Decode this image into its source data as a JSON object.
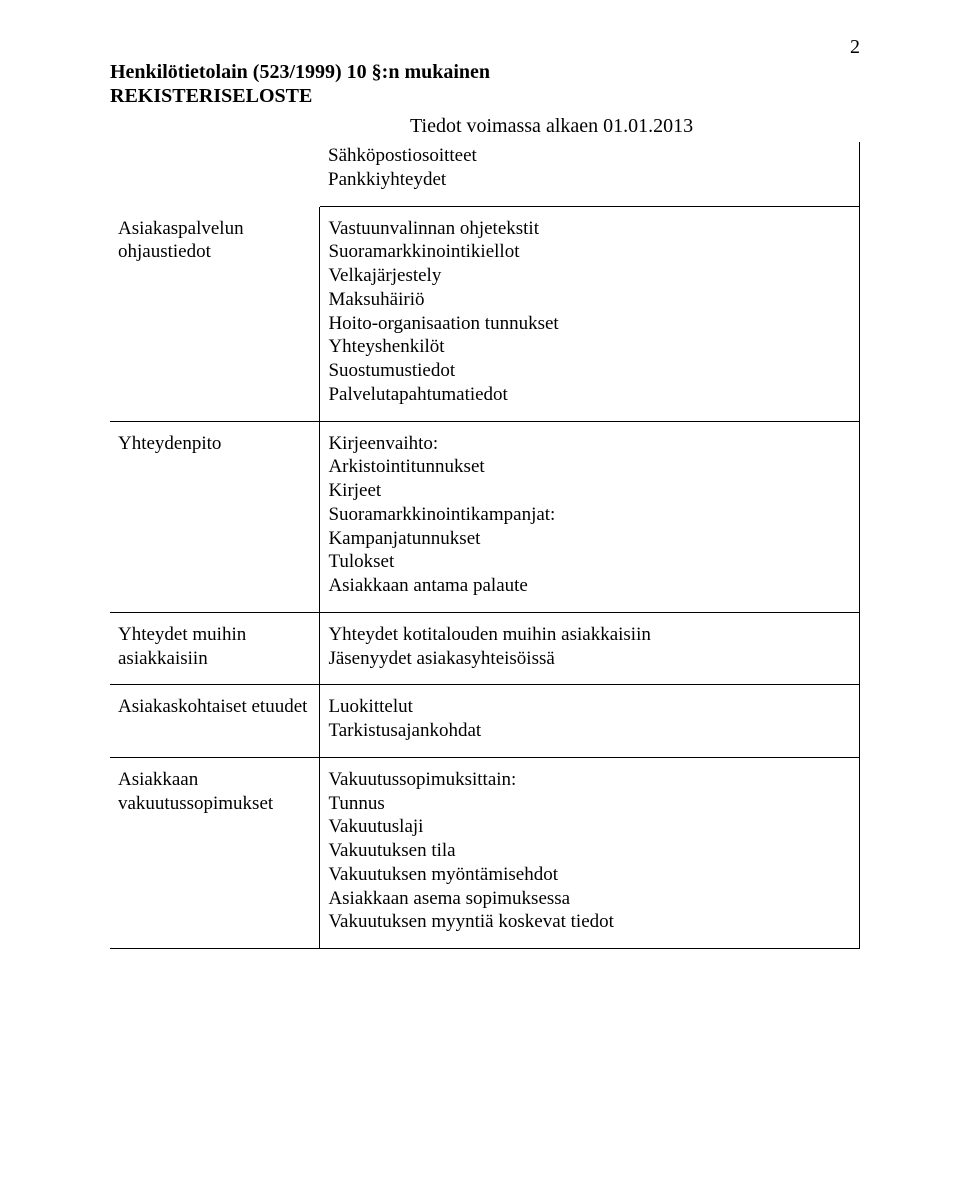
{
  "page_number": "2",
  "header": {
    "title": "Henkilötietolain (523/1999) 10 §:n mukainen\nREKISTERISELOSTE",
    "subtitle": "Tiedot voimassa alkaen 01.01.2013"
  },
  "intro_items": [
    "Sähköpostiosoitteet",
    "Pankkiyhteydet"
  ],
  "rows": [
    {
      "label": "Asiakaspalvelun ohjaustiedot",
      "items": [
        "Vastuunvalinnan ohjetekstit",
        "Suoramarkkinointikiellot",
        "Velkajärjestely",
        "Maksuhäiriö",
        "Hoito-organisaation tunnukset",
        "Yhteyshenkilöt",
        "Suostumustiedot",
        "Palvelutapahtumatiedot"
      ]
    },
    {
      "label": "Yhteydenpito",
      "items": [
        "Kirjeenvaihto:",
        "Arkistointitunnukset",
        "Kirjeet",
        "Suoramarkkinointikampanjat:",
        "Kampanjatunnukset",
        "Tulokset",
        "Asiakkaan antama palaute"
      ]
    },
    {
      "label": "Yhteydet muihin asiakkaisiin",
      "items": [
        "Yhteydet kotitalouden muihin asiakkaisiin",
        "Jäsenyydet asiakasyhteisöissä"
      ]
    },
    {
      "label": "Asiakaskohtaiset etuudet",
      "items": [
        "Luokittelut",
        "Tarkistusajankohdat"
      ]
    },
    {
      "label": "Asiakkaan vakuutussopimukset",
      "items": [
        "Vakuutussopimuksittain:",
        "Tunnus",
        "Vakuutuslaji",
        "Vakuutuksen tila",
        "Vakuutuksen myöntämisehdot",
        "Asiakkaan asema sopimuksessa",
        "Vakuutuksen myyntiä koskevat tiedot"
      ]
    }
  ]
}
